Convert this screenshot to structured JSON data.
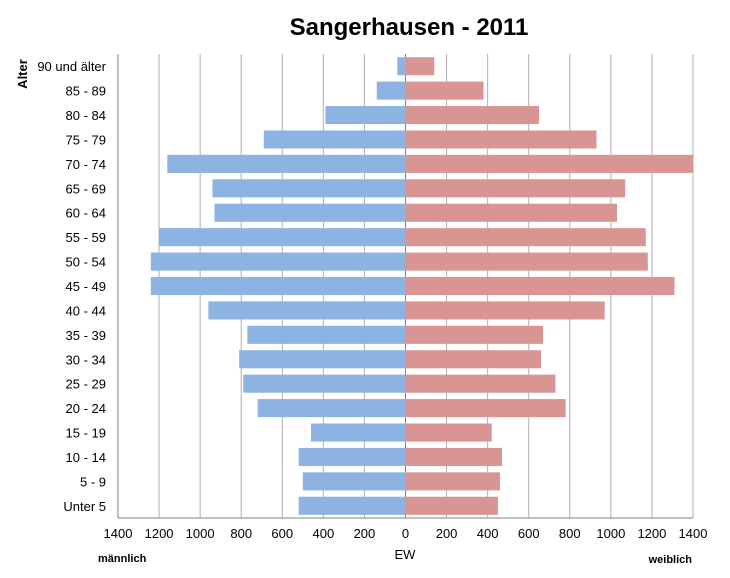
{
  "chart_data": {
    "type": "bar",
    "orientation": "horizontal-population-pyramid",
    "title": "Sangerhausen - 2011",
    "ylabel": "Alter",
    "xlabel": "EW",
    "left_label": "männlich",
    "right_label": "weiblich",
    "xlim": [
      -1400,
      1400
    ],
    "x_ticks": [
      -1400,
      -1200,
      -1000,
      -800,
      -600,
      -400,
      -200,
      0,
      200,
      400,
      600,
      800,
      1000,
      1200,
      1400
    ],
    "x_tick_labels": [
      "1400",
      "1200",
      "1000",
      "800",
      "600",
      "400",
      "200",
      "0",
      "200",
      "400",
      "600",
      "800",
      "1000",
      "1200",
      "1400"
    ],
    "grid": true,
    "categories": [
      "90 und älter",
      "85 - 89",
      "80 - 84",
      "75 - 79",
      "70 - 74",
      "65 - 69",
      "60 - 64",
      "55 - 59",
      "50 - 54",
      "45 - 49",
      "40 - 44",
      "35 - 39",
      "30 - 34",
      "25 - 29",
      "20 - 24",
      "15 - 19",
      "10 - 14",
      "5 - 9",
      "Unter 5"
    ],
    "series": [
      {
        "name": "männlich",
        "color": "#8db3e2",
        "values": [
          40,
          140,
          390,
          690,
          1160,
          940,
          930,
          1200,
          1240,
          1240,
          960,
          770,
          810,
          790,
          720,
          460,
          520,
          500,
          520
        ]
      },
      {
        "name": "weiblich",
        "color": "#d99594",
        "values": [
          140,
          380,
          650,
          930,
          1400,
          1070,
          1030,
          1170,
          1180,
          1310,
          970,
          670,
          660,
          730,
          780,
          420,
          470,
          460,
          450
        ]
      }
    ]
  }
}
